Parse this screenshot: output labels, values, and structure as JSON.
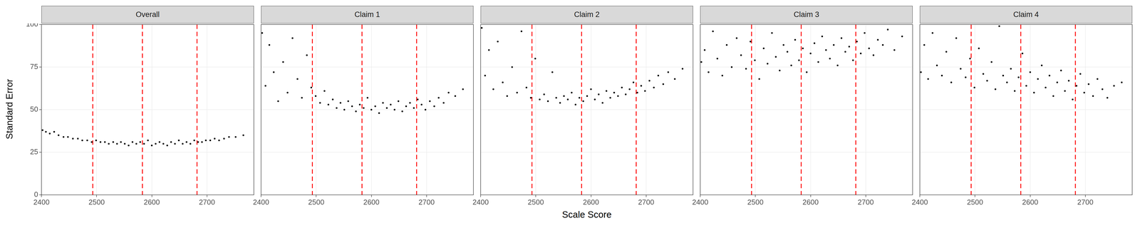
{
  "chart_data": [
    {
      "type": "scatter",
      "title": "Overall",
      "y_label": "Standard Error",
      "x": [
        2402,
        2408,
        2415,
        2423,
        2431,
        2440,
        2448,
        2457,
        2466,
        2474,
        2483,
        2491,
        2499,
        2507,
        2515,
        2522,
        2530,
        2537,
        2544,
        2551,
        2558,
        2565,
        2572,
        2579,
        2586,
        2593,
        2600,
        2607,
        2614,
        2621,
        2628,
        2635,
        2642,
        2649,
        2656,
        2663,
        2670,
        2677,
        2684,
        2691,
        2698,
        2706,
        2714,
        2722,
        2731,
        2740,
        2752,
        2766
      ],
      "values": [
        38,
        37,
        36,
        37,
        35,
        34,
        34,
        33,
        33,
        32,
        32,
        31,
        32,
        31,
        31,
        30,
        31,
        30,
        31,
        30,
        29,
        31,
        30,
        31,
        30,
        32,
        29,
        30,
        31,
        30,
        29,
        31,
        30,
        32,
        30,
        31,
        30,
        32,
        31,
        31,
        32,
        32,
        33,
        32,
        33,
        34,
        34,
        35
      ],
      "color": "#000000",
      "marker": "circle",
      "reference_lines": {
        "values": [
          2493,
          2583,
          2682
        ],
        "color": "#ff0000",
        "line_style": "dashed"
      },
      "xlim": [
        2400,
        2785
      ],
      "xticks": [
        2400,
        2500,
        2600,
        2700
      ],
      "ylim": [
        0,
        100
      ],
      "yticks": [
        0,
        25,
        50,
        75,
        100
      ],
      "grid": true
    },
    {
      "type": "scatter",
      "title": "Claim 1",
      "tick_labels": "x",
      "x": [
        2402,
        2408,
        2415,
        2423,
        2431,
        2440,
        2448,
        2457,
        2466,
        2474,
        2483,
        2491,
        2499,
        2507,
        2515,
        2522,
        2530,
        2537,
        2544,
        2551,
        2558,
        2565,
        2572,
        2579,
        2586,
        2593,
        2600,
        2607,
        2614,
        2621,
        2628,
        2635,
        2642,
        2649,
        2656,
        2663,
        2670,
        2677,
        2684,
        2691,
        2698,
        2706,
        2714,
        2722,
        2731,
        2740,
        2752,
        2766
      ],
      "values": [
        95,
        64,
        88,
        72,
        55,
        78,
        60,
        92,
        68,
        57,
        82,
        63,
        58,
        54,
        61,
        53,
        56,
        51,
        54,
        50,
        55,
        52,
        49,
        53,
        51,
        57,
        50,
        52,
        48,
        54,
        51,
        53,
        50,
        55,
        49,
        52,
        54,
        51,
        56,
        53,
        50,
        55,
        52,
        57,
        54,
        60,
        58,
        62
      ],
      "color": "#000000",
      "marker": "circle",
      "reference_lines": {
        "values": [
          2493,
          2583,
          2682
        ],
        "color": "#ff0000",
        "line_style": "dashed"
      },
      "xlim": [
        2400,
        2785
      ],
      "xticks": [
        2400,
        2500,
        2600,
        2700
      ],
      "ylim": [
        0,
        100
      ],
      "yticks": [
        0,
        25,
        50,
        75,
        100
      ],
      "grid": true
    },
    {
      "type": "scatter",
      "title": "Claim 2",
      "tick_labels": "x",
      "x_label": "Scale Score",
      "x": [
        2402,
        2408,
        2415,
        2423,
        2431,
        2440,
        2448,
        2457,
        2466,
        2474,
        2483,
        2491,
        2499,
        2507,
        2515,
        2522,
        2530,
        2537,
        2544,
        2551,
        2558,
        2565,
        2572,
        2579,
        2586,
        2593,
        2600,
        2607,
        2614,
        2621,
        2628,
        2635,
        2642,
        2649,
        2656,
        2663,
        2670,
        2677,
        2684,
        2691,
        2698,
        2706,
        2714,
        2722,
        2731,
        2740,
        2752,
        2766
      ],
      "values": [
        98,
        70,
        85,
        62,
        90,
        66,
        58,
        75,
        60,
        96,
        63,
        57,
        80,
        56,
        59,
        55,
        72,
        57,
        54,
        58,
        56,
        60,
        53,
        57,
        55,
        58,
        62,
        56,
        59,
        54,
        61,
        57,
        60,
        58,
        63,
        59,
        62,
        66,
        60,
        64,
        61,
        67,
        63,
        70,
        65,
        72,
        68,
        74
      ],
      "color": "#000000",
      "marker": "circle",
      "reference_lines": {
        "values": [
          2493,
          2583,
          2682
        ],
        "color": "#ff0000",
        "line_style": "dashed"
      },
      "xlim": [
        2400,
        2785
      ],
      "xticks": [
        2400,
        2500,
        2600,
        2700
      ],
      "ylim": [
        0,
        100
      ],
      "yticks": [
        0,
        25,
        50,
        75,
        100
      ],
      "grid": true
    },
    {
      "type": "scatter",
      "title": "Claim 3",
      "tick_labels": "x",
      "x": [
        2402,
        2408,
        2415,
        2423,
        2431,
        2440,
        2448,
        2457,
        2466,
        2474,
        2483,
        2491,
        2499,
        2507,
        2515,
        2522,
        2530,
        2537,
        2544,
        2551,
        2558,
        2565,
        2572,
        2579,
        2586,
        2593,
        2600,
        2607,
        2614,
        2621,
        2628,
        2635,
        2642,
        2649,
        2656,
        2663,
        2670,
        2677,
        2684,
        2691,
        2698,
        2706,
        2714,
        2722,
        2731,
        2740,
        2752,
        2766
      ],
      "values": [
        78,
        85,
        72,
        96,
        80,
        70,
        88,
        75,
        92,
        82,
        74,
        90,
        79,
        68,
        86,
        77,
        95,
        81,
        73,
        88,
        84,
        76,
        91,
        79,
        86,
        72,
        83,
        89,
        78,
        93,
        85,
        80,
        88,
        76,
        92,
        84,
        87,
        79,
        90,
        83,
        95,
        86,
        82,
        91,
        88,
        97,
        85,
        93
      ],
      "color": "#000000",
      "marker": "circle",
      "reference_lines": {
        "values": [
          2493,
          2583,
          2682
        ],
        "color": "#ff0000",
        "line_style": "dashed"
      },
      "xlim": [
        2400,
        2785
      ],
      "xticks": [
        2400,
        2500,
        2600,
        2700
      ],
      "ylim": [
        0,
        100
      ],
      "yticks": [
        0,
        25,
        50,
        75,
        100
      ],
      "grid": true
    },
    {
      "type": "scatter",
      "title": "Claim 4",
      "tick_labels": "x",
      "x": [
        2402,
        2408,
        2415,
        2423,
        2431,
        2440,
        2448,
        2457,
        2466,
        2474,
        2483,
        2491,
        2499,
        2507,
        2515,
        2522,
        2530,
        2537,
        2544,
        2551,
        2558,
        2565,
        2572,
        2579,
        2586,
        2593,
        2600,
        2607,
        2614,
        2621,
        2628,
        2635,
        2642,
        2649,
        2656,
        2663,
        2670,
        2677,
        2684,
        2691,
        2698,
        2706,
        2714,
        2722,
        2731,
        2740,
        2752,
        2766
      ],
      "values": [
        72,
        88,
        68,
        95,
        76,
        70,
        84,
        66,
        92,
        74,
        69,
        80,
        63,
        86,
        71,
        67,
        78,
        62,
        99,
        70,
        66,
        74,
        61,
        69,
        83,
        64,
        72,
        60,
        68,
        76,
        63,
        70,
        58,
        66,
        73,
        61,
        67,
        56,
        64,
        71,
        60,
        65,
        58,
        68,
        62,
        57,
        64,
        66
      ],
      "color": "#000000",
      "marker": "circle",
      "reference_lines": {
        "values": [
          2493,
          2583,
          2682
        ],
        "color": "#ff0000",
        "line_style": "dashed"
      },
      "xlim": [
        2400,
        2785
      ],
      "xticks": [
        2400,
        2500,
        2600,
        2700
      ],
      "ylim": [
        0,
        100
      ],
      "yticks": [
        0,
        25,
        50,
        75,
        100
      ],
      "grid": true
    }
  ]
}
